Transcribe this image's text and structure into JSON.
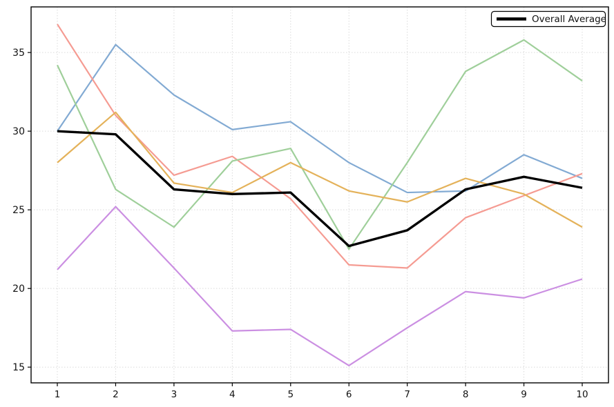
{
  "chart_data": {
    "type": "line",
    "title": "",
    "xlabel": "",
    "ylabel": "",
    "x": [
      1,
      2,
      3,
      4,
      5,
      6,
      7,
      8,
      9,
      10
    ],
    "x_tick_labels": [
      "1",
      "2",
      "3",
      "4",
      "5",
      "6",
      "7",
      "8",
      "9",
      "10"
    ],
    "y_tick_values": [
      15,
      20,
      25,
      30,
      35
    ],
    "y_tick_labels": [
      "15",
      "20",
      "25",
      "30",
      "35"
    ],
    "xlim": [
      0.55,
      10.45
    ],
    "ylim": [
      14.0,
      37.9
    ],
    "grid": true,
    "grid_style": "dotted",
    "grid_color": "#d9d9d9",
    "frame_color": "#000000",
    "background_color": "#ffffff",
    "legend": {
      "position": "upper right",
      "label": "Overall Average",
      "swatch_color": "#000000"
    },
    "series": [
      {
        "id": "series-1",
        "color": "#82aad3",
        "width": 2.2,
        "values": [
          30.0,
          35.5,
          32.3,
          30.1,
          30.6,
          28.0,
          26.1,
          26.2,
          28.5,
          27.0
        ]
      },
      {
        "id": "series-2",
        "color": "#f59b92",
        "width": 2.2,
        "values": [
          36.8,
          31.0,
          27.2,
          28.4,
          25.7,
          21.5,
          21.3,
          24.5,
          25.9,
          27.3
        ]
      },
      {
        "id": "series-3",
        "color": "#9fcf9a",
        "width": 2.2,
        "values": [
          34.2,
          26.3,
          23.9,
          28.1,
          28.9,
          22.5,
          28.0,
          33.8,
          35.8,
          33.2
        ]
      },
      {
        "id": "series-4",
        "color": "#e4b25a",
        "width": 2.2,
        "values": [
          28.0,
          31.2,
          26.7,
          26.1,
          28.0,
          26.2,
          25.5,
          27.0,
          26.0,
          23.9
        ]
      },
      {
        "id": "series-5",
        "color": "#cb8fe2",
        "width": 2.2,
        "values": [
          21.2,
          25.2,
          21.3,
          17.3,
          17.4,
          15.1,
          17.5,
          19.8,
          19.4,
          20.6
        ]
      },
      {
        "id": "overall-average",
        "color": "#000000",
        "width": 3.4,
        "values": [
          30.0,
          29.8,
          26.3,
          26.0,
          26.1,
          22.7,
          23.7,
          26.3,
          27.1,
          26.4
        ]
      }
    ]
  }
}
